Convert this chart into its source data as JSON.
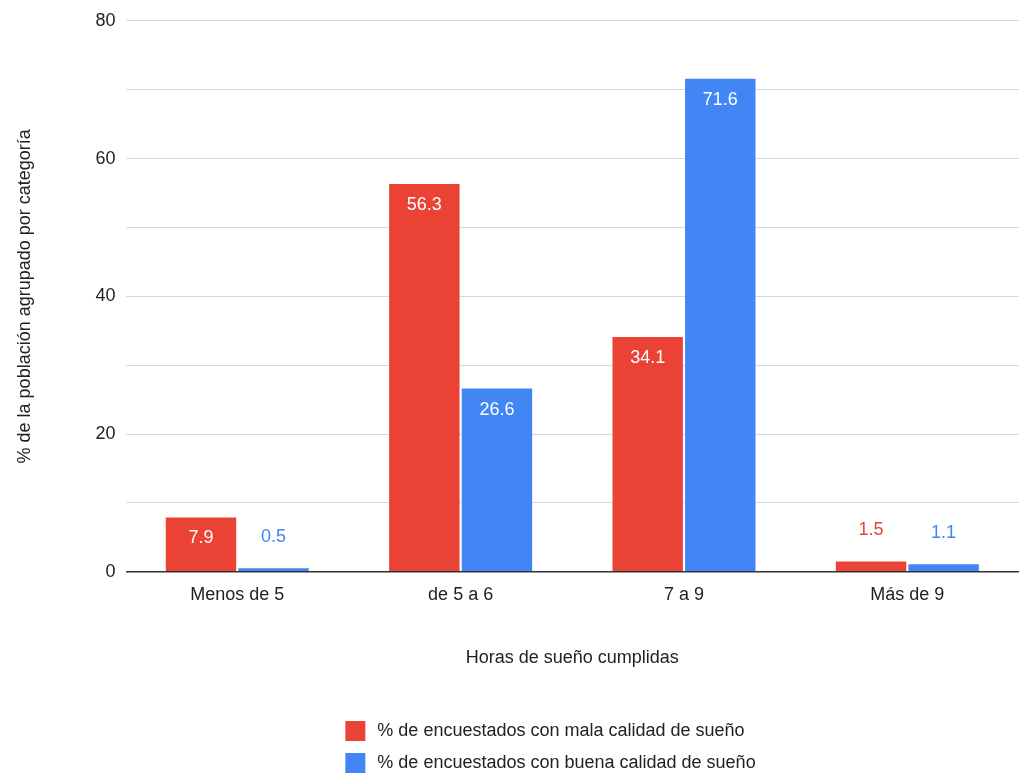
{
  "chart_data": {
    "type": "bar",
    "xlabel": "Horas de sueño cumplidas",
    "ylabel": "% de la población agrupado por categoría",
    "categories": [
      "Menos de 5",
      "de 5 a 6",
      "7 a 9",
      "Más de 9"
    ],
    "series": [
      {
        "name": "% de encuestados con mala calidad de sueño",
        "color": "#ea4335",
        "values": [
          7.9,
          56.3,
          34.1,
          1.5
        ]
      },
      {
        "name": "% de encuestados con buena calidad de sueño",
        "color": "#4285f4",
        "values": [
          0.5,
          26.6,
          71.6,
          1.1
        ]
      }
    ],
    "ylim": [
      0,
      80
    ],
    "yticks": [
      0,
      {
        "value": 10,
        "label": null
      },
      20,
      {
        "value": 30,
        "label": null
      },
      40,
      {
        "value": 50,
        "label": null
      },
      60,
      {
        "value": 70,
        "label": null
      },
      80
    ],
    "grid": "y",
    "legend": "bottom",
    "data_labels": true
  }
}
